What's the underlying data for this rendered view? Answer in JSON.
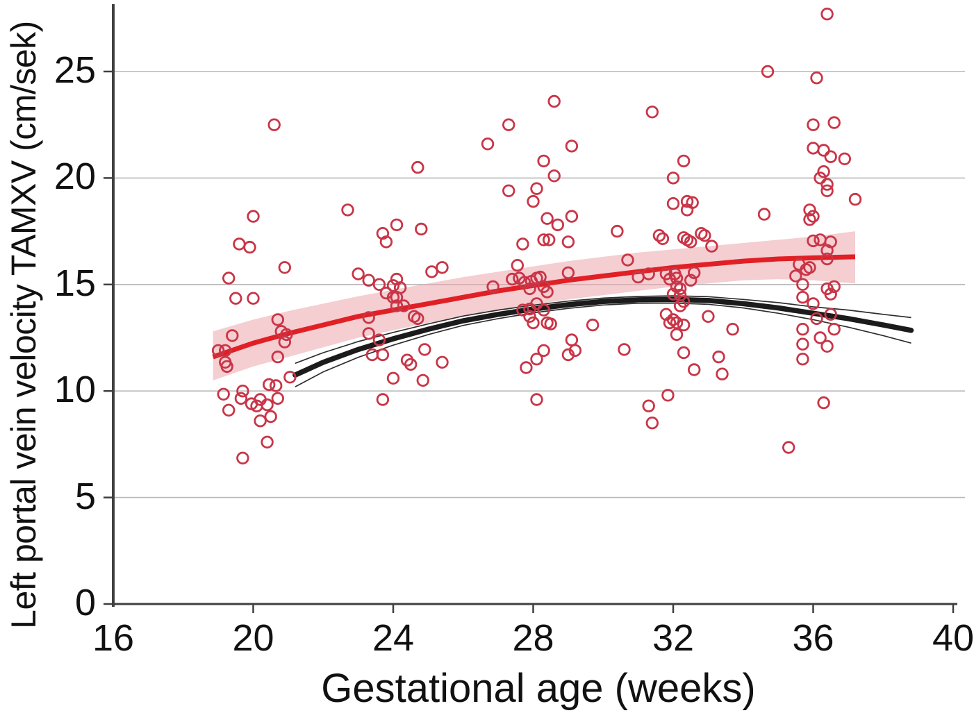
{
  "figure": {
    "xlabel": "Gestational age (weeks)",
    "ylabel": "Left portal vein velocity TAMXV (cm/sek)"
  },
  "colors": {
    "point_stroke": "#c93547",
    "red_line": "#e02025",
    "band_fill": "#eba6ab",
    "black_line": "#1b1b1b",
    "ci_line": "#2e2e2e",
    "grid": "#b9b9b9",
    "axis": "#3f3f3f",
    "text": "#111111"
  },
  "chart_data": {
    "type": "scatter",
    "title": "",
    "xlabel": "Gestational age (weeks)",
    "ylabel": "Left portal vein velocity TAMXV (cm/sek)",
    "xlim": [
      16,
      40.35
    ],
    "ylim": [
      0,
      28.35
    ],
    "x_ticks": [
      16,
      20,
      24,
      28,
      32,
      36,
      40
    ],
    "y_ticks": [
      0,
      5,
      10,
      15,
      20,
      25
    ],
    "grid": "horizontal gridlines at y ticks",
    "legend_position": "none",
    "series": [
      {
        "name": "observations",
        "type": "scatter",
        "marker": "open-circle",
        "points": [
          [
            19.0,
            11.9
          ],
          [
            19.2,
            11.9
          ],
          [
            19.2,
            11.35
          ],
          [
            19.25,
            11.15
          ],
          [
            19.3,
            15.3
          ],
          [
            19.4,
            12.6
          ],
          [
            19.5,
            14.35
          ],
          [
            20.0,
            14.35
          ],
          [
            19.6,
            16.9
          ],
          [
            19.9,
            16.75
          ],
          [
            20.0,
            18.2
          ],
          [
            20.6,
            22.5
          ],
          [
            20.9,
            15.8
          ],
          [
            20.7,
            13.35
          ],
          [
            20.8,
            12.8
          ],
          [
            20.95,
            12.65
          ],
          [
            20.9,
            12.3
          ],
          [
            20.7,
            11.6
          ],
          [
            21.05,
            10.65
          ],
          [
            19.15,
            9.85
          ],
          [
            19.7,
            10.0
          ],
          [
            19.65,
            9.65
          ],
          [
            20.45,
            10.3
          ],
          [
            20.65,
            10.25
          ],
          [
            20.7,
            9.65
          ],
          [
            19.95,
            9.4
          ],
          [
            20.2,
            9.6
          ],
          [
            20.1,
            9.3
          ],
          [
            19.3,
            9.1
          ],
          [
            20.4,
            9.35
          ],
          [
            20.5,
            8.8
          ],
          [
            20.2,
            8.6
          ],
          [
            20.4,
            7.6
          ],
          [
            19.7,
            6.85
          ],
          [
            22.7,
            18.5
          ],
          [
            23.0,
            15.5
          ],
          [
            23.3,
            15.2
          ],
          [
            23.6,
            15.0
          ],
          [
            23.8,
            14.6
          ],
          [
            24.0,
            14.95
          ],
          [
            24.1,
            15.25
          ],
          [
            24.2,
            14.85
          ],
          [
            24.0,
            14.4
          ],
          [
            24.1,
            14.4
          ],
          [
            24.3,
            14.0
          ],
          [
            24.1,
            14.0
          ],
          [
            24.6,
            13.5
          ],
          [
            24.7,
            13.4
          ],
          [
            23.3,
            13.45
          ],
          [
            23.3,
            12.7
          ],
          [
            23.6,
            12.4
          ],
          [
            23.4,
            11.7
          ],
          [
            23.7,
            11.7
          ],
          [
            24.4,
            11.45
          ],
          [
            24.5,
            11.25
          ],
          [
            24.85,
            10.5
          ],
          [
            24.0,
            10.6
          ],
          [
            23.7,
            9.6
          ],
          [
            23.7,
            17.4
          ],
          [
            23.8,
            17.0
          ],
          [
            24.1,
            17.8
          ],
          [
            24.8,
            17.6
          ],
          [
            24.7,
            20.5
          ],
          [
            25.1,
            15.6
          ],
          [
            25.4,
            15.8
          ],
          [
            24.9,
            11.95
          ],
          [
            25.4,
            11.35
          ],
          [
            26.7,
            21.6
          ],
          [
            27.3,
            22.5
          ],
          [
            28.6,
            23.6
          ],
          [
            29.1,
            21.5
          ],
          [
            31.4,
            23.1
          ],
          [
            28.3,
            20.8
          ],
          [
            28.6,
            20.1
          ],
          [
            27.3,
            19.4
          ],
          [
            28.1,
            19.5
          ],
          [
            28.0,
            18.9
          ],
          [
            28.4,
            18.1
          ],
          [
            28.7,
            17.8
          ],
          [
            29.1,
            18.2
          ],
          [
            30.4,
            17.5
          ],
          [
            27.7,
            16.9
          ],
          [
            28.3,
            17.1
          ],
          [
            28.45,
            17.1
          ],
          [
            29.0,
            17.0
          ],
          [
            26.85,
            14.9
          ],
          [
            27.55,
            15.9
          ],
          [
            27.4,
            15.25
          ],
          [
            27.6,
            15.3
          ],
          [
            27.75,
            15.1
          ],
          [
            27.95,
            15.15
          ],
          [
            27.9,
            14.8
          ],
          [
            28.1,
            15.3
          ],
          [
            28.2,
            15.35
          ],
          [
            28.3,
            14.9
          ],
          [
            28.4,
            14.65
          ],
          [
            29.0,
            15.55
          ],
          [
            29.7,
            13.1
          ],
          [
            30.7,
            16.15
          ],
          [
            31.0,
            15.35
          ],
          [
            31.3,
            15.5
          ],
          [
            27.7,
            13.8
          ],
          [
            27.9,
            13.85
          ],
          [
            28.1,
            14.1
          ],
          [
            27.9,
            13.5
          ],
          [
            28.0,
            13.2
          ],
          [
            28.3,
            13.8
          ],
          [
            28.4,
            13.2
          ],
          [
            28.5,
            13.15
          ],
          [
            29.1,
            12.4
          ],
          [
            29.2,
            11.9
          ],
          [
            29.0,
            11.7
          ],
          [
            28.3,
            11.9
          ],
          [
            28.1,
            11.5
          ],
          [
            27.8,
            11.1
          ],
          [
            30.6,
            11.95
          ],
          [
            28.1,
            9.6
          ],
          [
            31.3,
            9.3
          ],
          [
            31.4,
            8.5
          ],
          [
            31.6,
            17.3
          ],
          [
            31.7,
            17.15
          ],
          [
            32.3,
            17.2
          ],
          [
            32.4,
            17.1
          ],
          [
            32.5,
            17.0
          ],
          [
            32.8,
            17.4
          ],
          [
            32.9,
            17.3
          ],
          [
            32.3,
            20.8
          ],
          [
            32.0,
            20.0
          ],
          [
            32.0,
            18.8
          ],
          [
            32.4,
            18.9
          ],
          [
            32.55,
            18.85
          ],
          [
            32.4,
            18.5
          ],
          [
            33.1,
            16.8
          ],
          [
            34.7,
            25.0
          ],
          [
            34.6,
            18.3
          ],
          [
            31.8,
            15.5
          ],
          [
            32.05,
            15.5
          ],
          [
            31.9,
            15.25
          ],
          [
            32.1,
            15.3
          ],
          [
            32.6,
            15.55
          ],
          [
            32.5,
            15.2
          ],
          [
            32.1,
            14.9
          ],
          [
            32.2,
            14.8
          ],
          [
            32.0,
            14.55
          ],
          [
            32.2,
            14.5
          ],
          [
            32.3,
            14.2
          ],
          [
            32.2,
            14.0
          ],
          [
            31.8,
            13.6
          ],
          [
            32.0,
            13.35
          ],
          [
            32.1,
            13.2
          ],
          [
            31.9,
            13.2
          ],
          [
            32.3,
            13.1
          ],
          [
            32.1,
            12.65
          ],
          [
            33.0,
            13.5
          ],
          [
            33.3,
            11.6
          ],
          [
            33.4,
            10.8
          ],
          [
            33.7,
            12.9
          ],
          [
            32.3,
            11.8
          ],
          [
            32.6,
            11.0
          ],
          [
            31.85,
            9.8
          ],
          [
            35.3,
            7.35
          ],
          [
            36.4,
            27.7
          ],
          [
            36.1,
            24.7
          ],
          [
            36.0,
            22.5
          ],
          [
            36.6,
            22.6
          ],
          [
            36.0,
            21.4
          ],
          [
            36.3,
            21.3
          ],
          [
            36.5,
            21.0
          ],
          [
            36.9,
            20.9
          ],
          [
            36.3,
            20.3
          ],
          [
            36.2,
            20.0
          ],
          [
            36.4,
            19.7
          ],
          [
            36.4,
            19.4
          ],
          [
            37.2,
            19.0
          ],
          [
            35.9,
            18.5
          ],
          [
            36.0,
            18.2
          ],
          [
            35.9,
            18.05
          ],
          [
            36.0,
            17.05
          ],
          [
            36.2,
            17.1
          ],
          [
            36.5,
            17.0
          ],
          [
            36.4,
            16.6
          ],
          [
            36.4,
            16.2
          ],
          [
            35.7,
            15.0
          ],
          [
            35.6,
            15.95
          ],
          [
            35.8,
            15.7
          ],
          [
            35.9,
            15.8
          ],
          [
            35.5,
            15.4
          ],
          [
            35.7,
            14.4
          ],
          [
            36.0,
            14.1
          ],
          [
            36.4,
            14.8
          ],
          [
            36.6,
            14.9
          ],
          [
            36.5,
            14.55
          ],
          [
            36.1,
            13.4
          ],
          [
            36.5,
            13.6
          ],
          [
            35.7,
            12.9
          ],
          [
            35.7,
            12.2
          ],
          [
            35.7,
            11.5
          ],
          [
            36.2,
            12.5
          ],
          [
            36.4,
            12.1
          ],
          [
            36.6,
            12.9
          ],
          [
            36.3,
            9.45
          ]
        ]
      },
      {
        "name": "red-mean-curve",
        "type": "line",
        "x": [
          18.85,
          20,
          21,
          22,
          23,
          24,
          25,
          26,
          27,
          28,
          29,
          30,
          31,
          32,
          33,
          34,
          35,
          36,
          37.2
        ],
        "y": [
          11.6,
          12.25,
          12.7,
          13.1,
          13.5,
          13.8,
          14.1,
          14.4,
          14.7,
          14.95,
          15.2,
          15.4,
          15.6,
          15.8,
          15.95,
          16.1,
          16.2,
          16.25,
          16.3
        ]
      },
      {
        "name": "red-ci-band",
        "type": "band",
        "x": [
          18.85,
          20,
          21,
          22,
          23,
          24,
          25,
          26,
          27,
          28,
          29,
          30,
          31,
          32,
          33,
          34,
          35,
          36,
          37.2
        ],
        "upper": [
          12.8,
          13.35,
          13.75,
          14.1,
          14.45,
          14.75,
          15.05,
          15.35,
          15.6,
          15.85,
          16.1,
          16.3,
          16.5,
          16.65,
          16.8,
          16.95,
          17.1,
          17.25,
          17.5
        ],
        "lower": [
          10.5,
          11.15,
          11.6,
          12.05,
          12.5,
          12.85,
          13.2,
          13.5,
          13.8,
          14.05,
          14.3,
          14.5,
          14.7,
          14.9,
          15.05,
          15.2,
          15.25,
          15.2,
          15.05
        ]
      },
      {
        "name": "black-mean-curve",
        "type": "line",
        "x": [
          21.2,
          22,
          23,
          24,
          25,
          26,
          27,
          28,
          29,
          30,
          31,
          32,
          33,
          34,
          35,
          36,
          37,
          38,
          38.8
        ],
        "y": [
          10.75,
          11.35,
          11.95,
          12.45,
          12.9,
          13.3,
          13.6,
          13.85,
          14.05,
          14.2,
          14.28,
          14.3,
          14.25,
          14.1,
          13.9,
          13.65,
          13.4,
          13.1,
          12.85
        ]
      },
      {
        "name": "black-ci",
        "type": "interval-lines",
        "x": [
          21.2,
          22,
          23,
          24,
          25,
          26,
          27,
          28,
          29,
          30,
          31,
          32,
          33,
          34,
          35,
          36,
          37,
          38,
          38.8
        ],
        "upper": [
          11.3,
          11.8,
          12.32,
          12.75,
          13.15,
          13.52,
          13.8,
          14.03,
          14.22,
          14.36,
          14.44,
          14.47,
          14.43,
          14.3,
          14.15,
          13.95,
          13.8,
          13.6,
          13.45
        ],
        "lower": [
          10.2,
          10.9,
          11.58,
          12.15,
          12.65,
          13.08,
          13.4,
          13.67,
          13.88,
          14.04,
          14.12,
          14.13,
          14.07,
          13.9,
          13.65,
          13.35,
          13.0,
          12.6,
          12.25
        ]
      }
    ]
  }
}
